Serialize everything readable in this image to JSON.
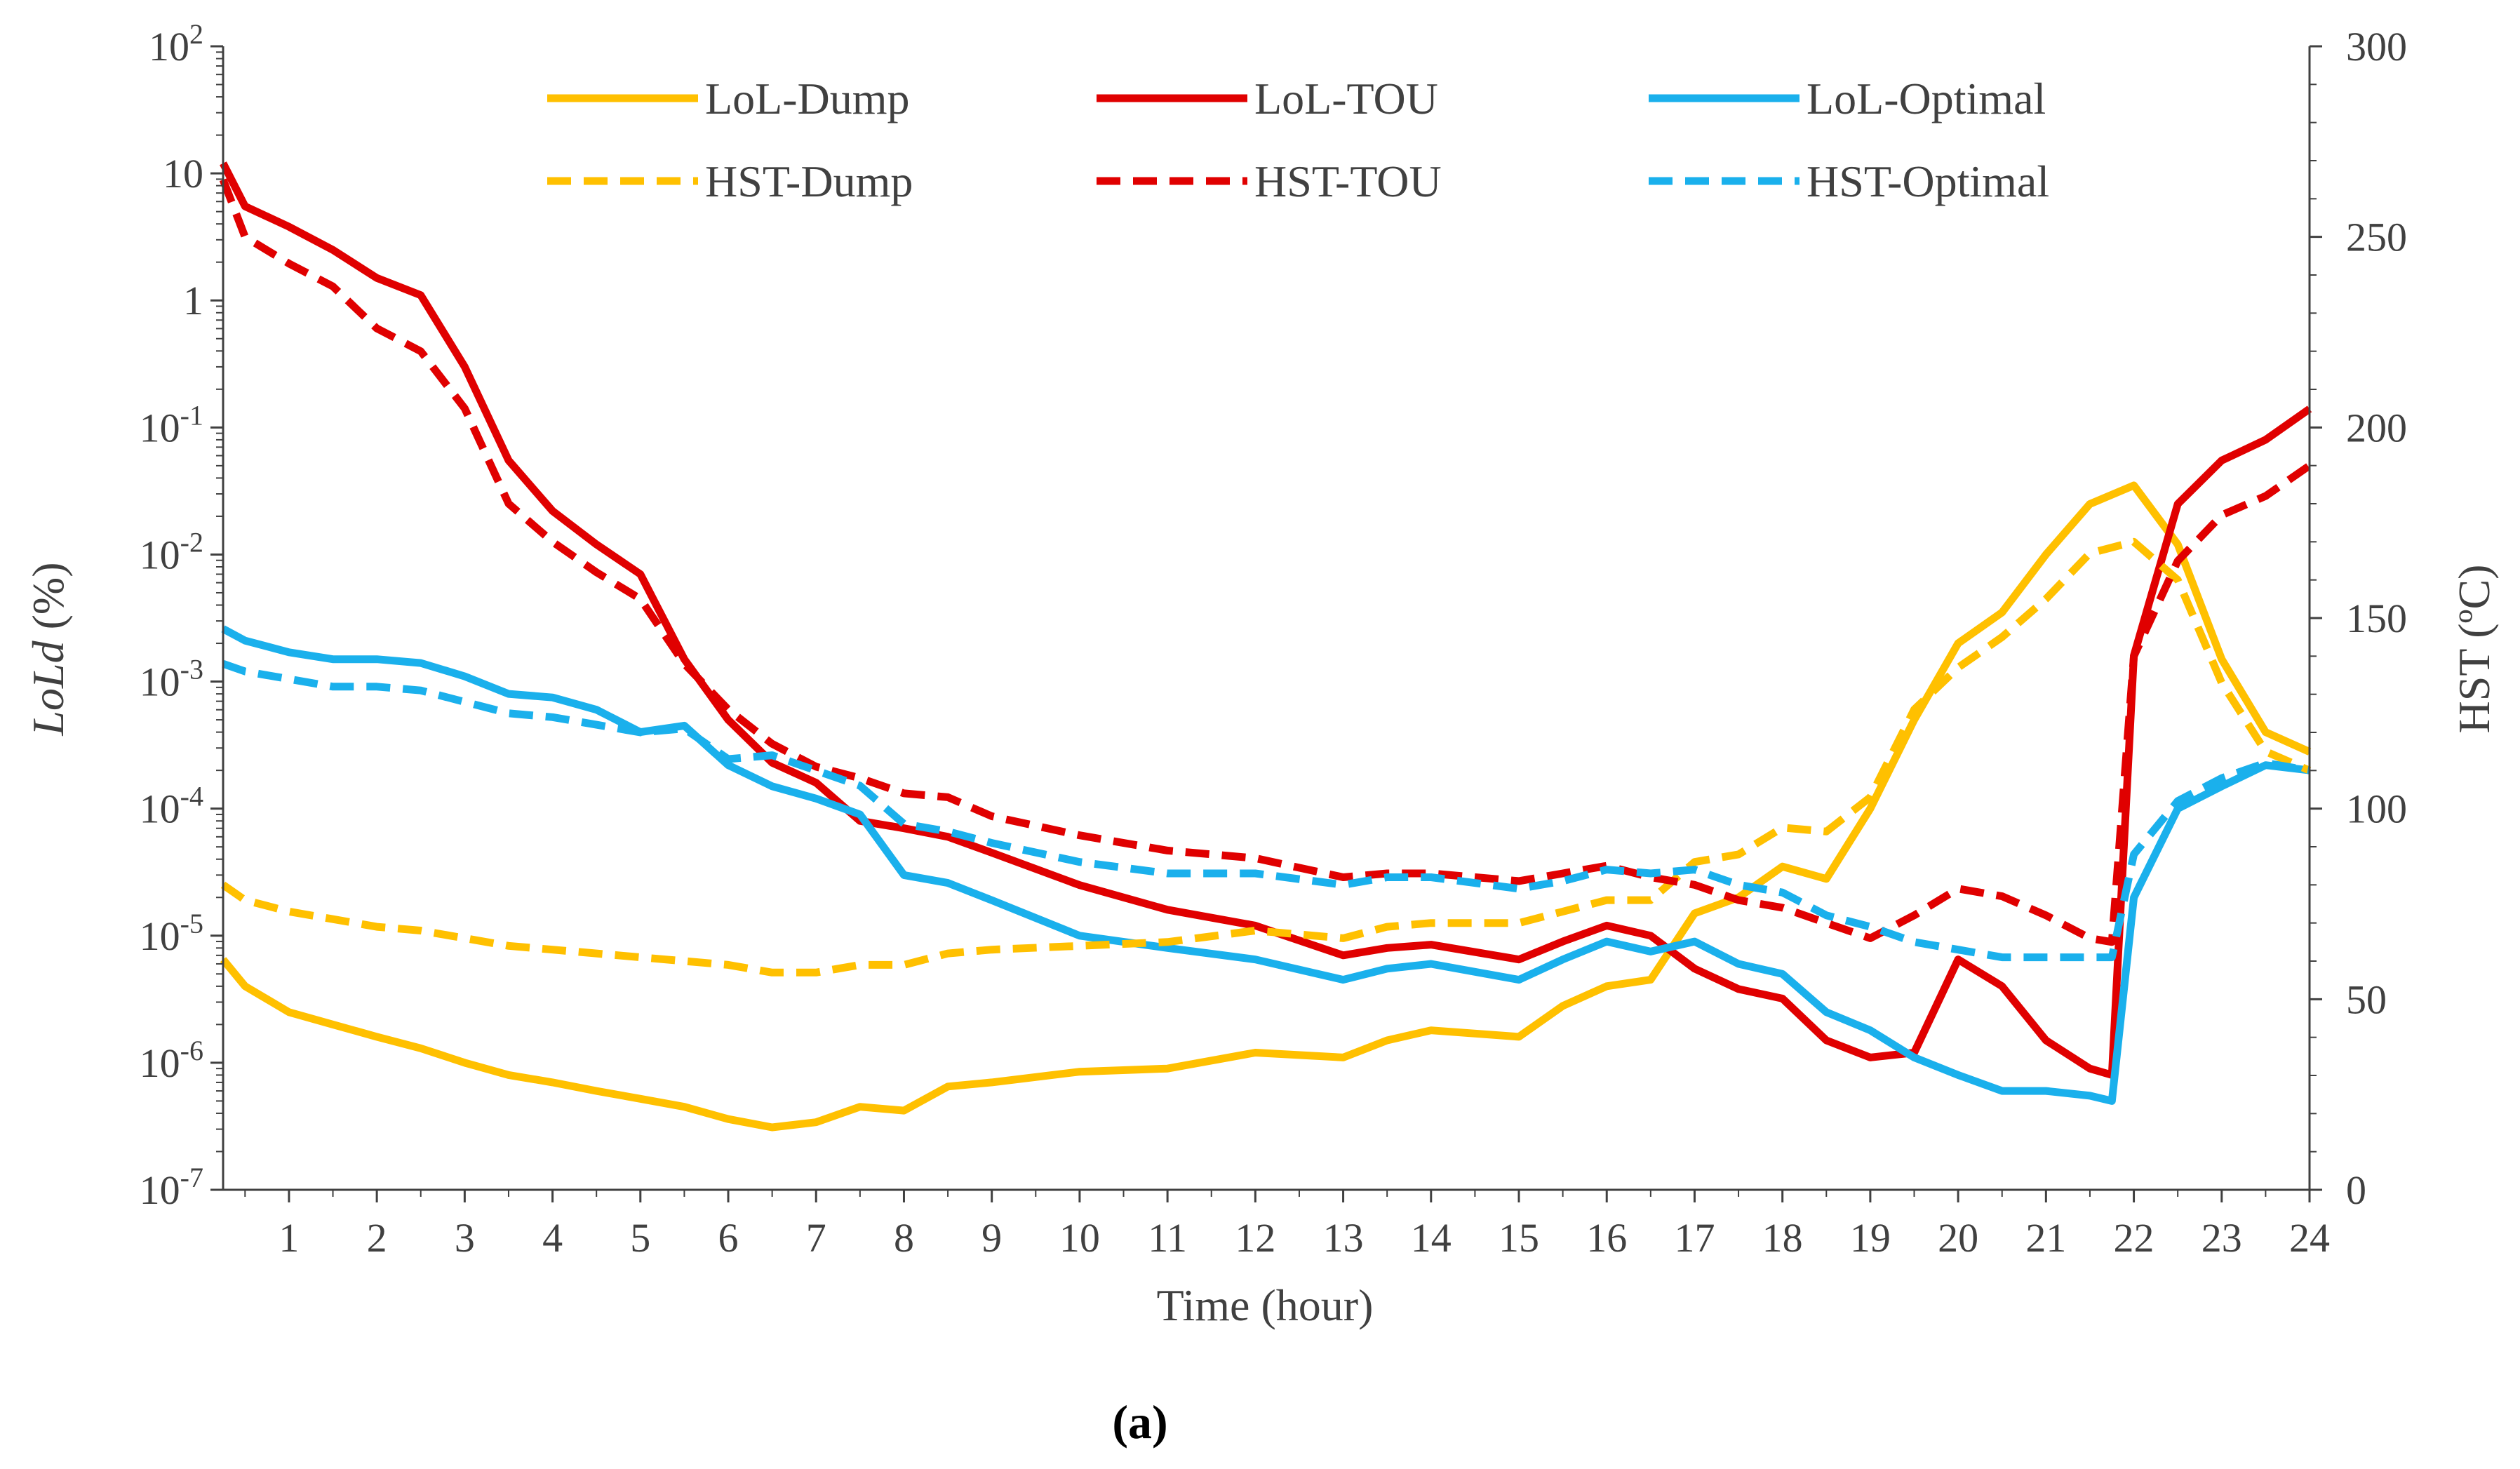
{
  "chart_data": {
    "type": "line",
    "title": "",
    "xlabel": "Time (hour)",
    "ylabel_left": "LoLd (%)",
    "ylabel_left_parts": {
      "italic": "LoLd",
      "plain": " (%)"
    },
    "ylabel_right": "HST (ºC)",
    "caption": "(a)",
    "x_ticks": [
      "1",
      "2",
      "3",
      "4",
      "5",
      "6",
      "7",
      "8",
      "9",
      "10",
      "11",
      "12",
      "13",
      "14",
      "15",
      "16",
      "17",
      "18",
      "19",
      "20",
      "21",
      "22",
      "23",
      "24"
    ],
    "xlim": [
      0.25,
      24
    ],
    "left_axis": {
      "scale": "log",
      "range_exponent": [
        -7,
        2
      ],
      "tick_labels": [
        {
          "base": "10",
          "sup": "2"
        },
        {
          "base": "10",
          "sup": ""
        },
        {
          "base": "1",
          "sup": ""
        },
        {
          "base": "10",
          "sup": "-1"
        },
        {
          "base": "10",
          "sup": "-2"
        },
        {
          "base": "10",
          "sup": "-3"
        },
        {
          "base": "10",
          "sup": "-4"
        },
        {
          "base": "10",
          "sup": "-5"
        },
        {
          "base": "10",
          "sup": "-6"
        },
        {
          "base": "10",
          "sup": "-7"
        }
      ]
    },
    "right_axis": {
      "scale": "linear",
      "ylim": [
        0,
        300
      ],
      "ticks": [
        "0",
        "50",
        "100",
        "150",
        "200",
        "250",
        "300"
      ]
    },
    "series": [
      {
        "name": "LoL-Dump",
        "axis": "left",
        "style": "solid",
        "color": "#FFC000",
        "x": [
          0.25,
          0.5,
          1,
          1.5,
          2,
          2.5,
          3,
          3.5,
          4,
          4.5,
          5,
          5.5,
          6,
          6.5,
          7,
          7.5,
          8,
          8.5,
          9,
          10,
          11,
          12,
          13,
          13.5,
          14,
          15,
          15.5,
          16,
          16.5,
          17,
          17.5,
          18,
          18.5,
          19,
          19.5,
          20,
          20.5,
          21,
          21.5,
          22,
          22.5,
          23,
          23.5,
          24
        ],
        "values": [
          6.5e-06,
          4e-06,
          2.5e-06,
          2e-06,
          1.6e-06,
          1.3e-06,
          1e-06,
          8e-07,
          7e-07,
          6e-07,
          5.2e-07,
          4.5e-07,
          3.6e-07,
          3.1e-07,
          3.4e-07,
          4.5e-07,
          4.2e-07,
          6.5e-07,
          7e-07,
          8.5e-07,
          9e-07,
          1.2e-06,
          1.1e-06,
          1.5e-06,
          1.8e-06,
          1.6e-06,
          2.8e-06,
          4e-06,
          4.5e-06,
          1.5e-05,
          2e-05,
          3.5e-05,
          2.8e-05,
          0.0001,
          0.0005,
          0.002,
          0.0035,
          0.01,
          0.025,
          0.035,
          0.012,
          0.0015,
          0.0004,
          0.00028
        ]
      },
      {
        "name": "LoL-TOU",
        "axis": "left",
        "style": "solid",
        "color": "#E00000",
        "x": [
          0.25,
          0.5,
          1,
          1.5,
          2,
          2.5,
          3,
          3.5,
          4,
          4.5,
          5,
          5.5,
          6,
          6.5,
          7,
          7.5,
          8,
          8.5,
          9,
          10,
          11,
          12,
          13,
          13.5,
          14,
          15,
          15.5,
          16,
          16.5,
          17,
          17.5,
          18,
          18.5,
          19,
          19.5,
          20,
          20.5,
          21,
          21.5,
          21.75,
          22,
          22.5,
          23,
          23.5,
          24
        ],
        "values": [
          12,
          5.5,
          3.8,
          2.5,
          1.5,
          1.1,
          0.3,
          0.055,
          0.022,
          0.012,
          0.007,
          0.0015,
          0.0005,
          0.00023,
          0.00016,
          8e-05,
          7e-05,
          6e-05,
          4.5e-05,
          2.5e-05,
          1.6e-05,
          1.2e-05,
          7e-06,
          8e-06,
          8.5e-06,
          6.5e-06,
          9e-06,
          1.2e-05,
          1e-05,
          5.5e-06,
          3.8e-06,
          3.2e-06,
          1.5e-06,
          1.1e-06,
          1.2e-06,
          6.5e-06,
          4e-06,
          1.5e-06,
          9e-07,
          8e-07,
          0.0016,
          0.025,
          0.055,
          0.08,
          0.14
        ]
      },
      {
        "name": "LoL-Optimal",
        "axis": "left",
        "style": "solid",
        "color": "#1AB0EC",
        "x": [
          0.25,
          0.5,
          1,
          1.5,
          2,
          2.5,
          3,
          3.5,
          4,
          4.5,
          5,
          5.5,
          6,
          6.5,
          7,
          7.5,
          8,
          8.5,
          9,
          10,
          11,
          12,
          13,
          13.5,
          14,
          15,
          15.5,
          16,
          16.5,
          17,
          17.5,
          18,
          18.5,
          19,
          19.5,
          20,
          20.5,
          21,
          21.5,
          21.75,
          22,
          22.5,
          23,
          23.5,
          24
        ],
        "values": [
          0.0026,
          0.0021,
          0.0017,
          0.0015,
          0.0015,
          0.0014,
          0.0011,
          0.0008,
          0.00075,
          0.0006,
          0.0004,
          0.00045,
          0.00022,
          0.00015,
          0.00012,
          9e-05,
          3e-05,
          2.6e-05,
          1.9e-05,
          1e-05,
          8e-06,
          6.5e-06,
          4.5e-06,
          5.5e-06,
          6e-06,
          4.5e-06,
          6.5e-06,
          9e-06,
          7.5e-06,
          9e-06,
          6e-06,
          5e-06,
          2.5e-06,
          1.8e-06,
          1.1e-06,
          8e-07,
          6e-07,
          6e-07,
          5.5e-07,
          5e-07,
          2e-05,
          0.0001,
          0.00015,
          0.00022,
          0.0002
        ]
      },
      {
        "name": "HST-Dump",
        "axis": "right",
        "style": "dashed",
        "color": "#FFC000",
        "x": [
          0.25,
          0.5,
          1,
          1.5,
          2,
          2.5,
          3,
          3.5,
          4,
          4.5,
          5,
          5.5,
          6,
          6.5,
          7,
          7.5,
          8,
          8.5,
          9,
          10,
          11,
          12,
          13,
          13.5,
          14,
          15,
          15.5,
          16,
          16.5,
          17,
          17.5,
          18,
          18.5,
          19,
          19.5,
          20,
          20.5,
          21,
          21.5,
          22,
          22.5,
          23,
          23.5,
          24
        ],
        "values": [
          80,
          76,
          73,
          71,
          69,
          68,
          66,
          64,
          63,
          62,
          61,
          60,
          59,
          57,
          57,
          59,
          59,
          62,
          63,
          64,
          65,
          68,
          66,
          69,
          70,
          70,
          73,
          76,
          76,
          86,
          88,
          95,
          94,
          103,
          126,
          137,
          145,
          155,
          167,
          170,
          160,
          133,
          115,
          110
        ]
      },
      {
        "name": "HST-TOU",
        "axis": "right",
        "style": "dashed",
        "color": "#E00000",
        "x": [
          0.25,
          0.5,
          1,
          1.5,
          2,
          2.5,
          3,
          3.5,
          4,
          4.5,
          5,
          5.5,
          6,
          6.5,
          7,
          7.5,
          8,
          8.5,
          9,
          10,
          11,
          12,
          13,
          13.5,
          14,
          15,
          15.5,
          16,
          16.5,
          17,
          17.5,
          18,
          18.5,
          19,
          19.5,
          20,
          20.5,
          21,
          21.5,
          21.75,
          22,
          22.5,
          23,
          23.5,
          24
        ],
        "values": [
          265,
          250,
          243,
          237,
          226,
          220,
          205,
          180,
          170,
          162,
          155,
          138,
          126,
          117,
          111,
          108,
          104,
          103,
          98,
          93,
          89,
          87,
          82,
          83,
          83,
          81,
          83,
          85,
          82,
          80,
          76,
          74,
          70,
          66,
          72,
          79,
          77,
          72,
          66,
          65,
          140,
          165,
          177,
          182,
          190
        ]
      },
      {
        "name": "HST-Optimal",
        "axis": "right",
        "style": "dashed",
        "color": "#1AB0EC",
        "x": [
          0.25,
          0.5,
          1,
          1.5,
          2,
          2.5,
          3,
          3.5,
          4,
          4.5,
          5,
          5.5,
          6,
          6.5,
          7,
          7.5,
          8,
          8.5,
          9,
          10,
          11,
          12,
          13,
          13.5,
          14,
          15,
          15.5,
          16,
          16.5,
          17,
          17.5,
          18,
          18.5,
          19,
          19.5,
          20,
          20.5,
          21,
          21.5,
          21.75,
          22,
          22.5,
          23,
          23.5,
          24
        ],
        "values": [
          138,
          136,
          134,
          132,
          132,
          131,
          128,
          125,
          124,
          122,
          120,
          121,
          113,
          114,
          110,
          106,
          96,
          94,
          91,
          86,
          83,
          83,
          80,
          82,
          82,
          79,
          81,
          84,
          83,
          84,
          80,
          78,
          72,
          69,
          65,
          63,
          61,
          61,
          61,
          61,
          88,
          102,
          108,
          112,
          110
        ]
      }
    ],
    "legend": {
      "placement": "top-center",
      "columns": 3
    }
  }
}
